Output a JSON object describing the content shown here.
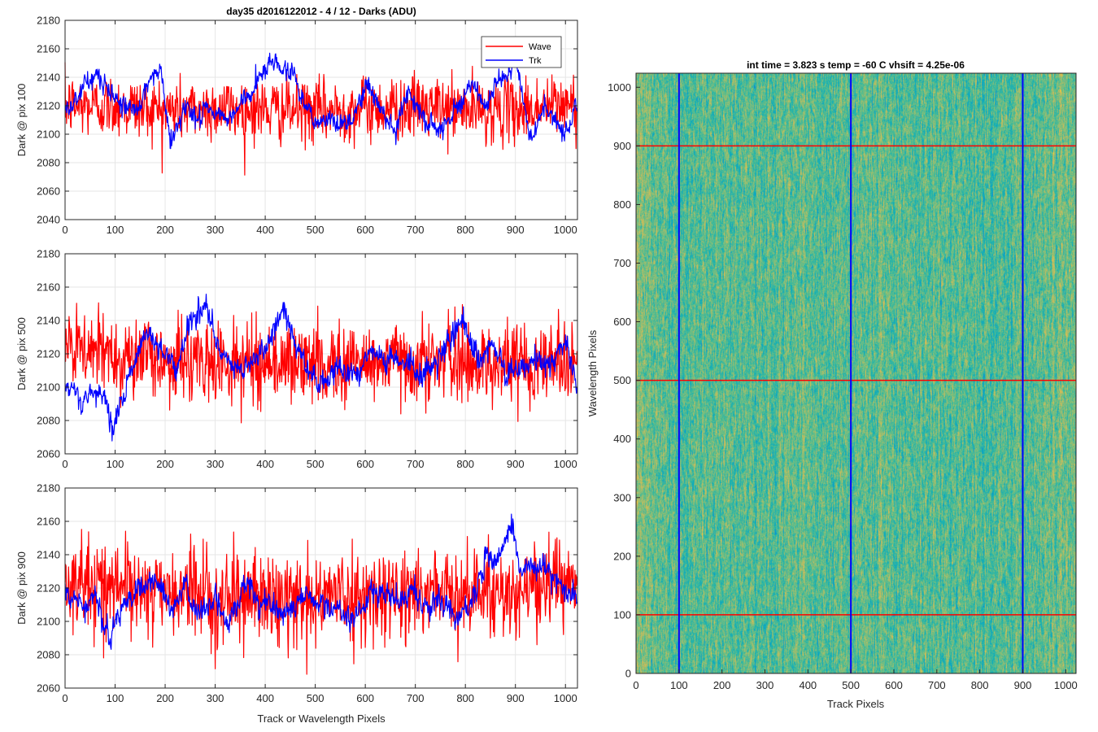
{
  "figure_title": "day35 d2016122012 - 4 / 12 - Darks (ADU)",
  "heatmap_title": "int time = 3.823 s   temp = -60 C   vhsift = 4.25e-06",
  "colors": {
    "wave": "#ff0000",
    "trk": "#0000ff",
    "grid": "#e6e6e6",
    "axis": "#262626"
  },
  "chart_data": [
    {
      "type": "line",
      "title": "day35 d2016122012 - 4 / 12 - Darks (ADU)",
      "xlabel": "",
      "ylabel": "Dark @ pix 100",
      "xlim": [
        0,
        1024
      ],
      "ylim": [
        2040,
        2180
      ],
      "xticks": [
        0,
        100,
        200,
        300,
        400,
        500,
        600,
        700,
        800,
        900,
        1000
      ],
      "yticks": [
        2040,
        2060,
        2080,
        2100,
        2120,
        2140,
        2160,
        2180
      ],
      "grid": true,
      "legend": {
        "placement": "top-right",
        "entries": [
          "Wave",
          "Trk"
        ]
      },
      "series": [
        {
          "name": "Wave",
          "color": "#ff0000",
          "mean": 2118,
          "noise": 11,
          "x": [
            0,
            100,
            200,
            300,
            400,
            500,
            600,
            700,
            800,
            900,
            1000,
            1024
          ],
          "y": [
            2120,
            2120,
            2117,
            2118,
            2117,
            2116,
            2118,
            2119,
            2117,
            2117,
            2121,
            2120
          ]
        },
        {
          "name": "Trk",
          "color": "#0000ff",
          "x": [
            0,
            30,
            60,
            100,
            130,
            160,
            190,
            210,
            240,
            270,
            300,
            330,
            360,
            390,
            410,
            430,
            460,
            490,
            520,
            550,
            580,
            600,
            630,
            660,
            690,
            720,
            750,
            780,
            810,
            840,
            870,
            900,
            930,
            960,
            990,
            1024
          ],
          "y": [
            2118,
            2130,
            2140,
            2128,
            2118,
            2125,
            2148,
            2093,
            2120,
            2112,
            2115,
            2110,
            2125,
            2140,
            2155,
            2148,
            2140,
            2113,
            2108,
            2110,
            2112,
            2140,
            2118,
            2107,
            2130,
            2108,
            2105,
            2120,
            2135,
            2118,
            2140,
            2148,
            2100,
            2118,
            2102,
            2120
          ]
        }
      ]
    },
    {
      "type": "line",
      "title": "",
      "xlabel": "",
      "ylabel": "Dark @ pix 500",
      "xlim": [
        0,
        1024
      ],
      "ylim": [
        2060,
        2180
      ],
      "xticks": [
        0,
        100,
        200,
        300,
        400,
        500,
        600,
        700,
        800,
        900,
        1000
      ],
      "yticks": [
        2060,
        2080,
        2100,
        2120,
        2140,
        2160,
        2180
      ],
      "grid": true,
      "series": [
        {
          "name": "Wave",
          "color": "#ff0000",
          "mean": 2115,
          "noise": 12,
          "x": [
            0,
            100,
            200,
            300,
            400,
            500,
            600,
            700,
            800,
            900,
            1000,
            1024
          ],
          "y": [
            2122,
            2120,
            2116,
            2114,
            2115,
            2114,
            2115,
            2116,
            2115,
            2114,
            2118,
            2116
          ]
        },
        {
          "name": "Trk",
          "color": "#0000ff",
          "x": [
            0,
            40,
            70,
            100,
            130,
            160,
            190,
            220,
            250,
            280,
            310,
            340,
            370,
            400,
            430,
            460,
            490,
            520,
            550,
            580,
            610,
            640,
            670,
            700,
            730,
            760,
            790,
            820,
            850,
            880,
            910,
            940,
            970,
            1000,
            1024
          ],
          "y": [
            2100,
            2090,
            2096,
            2080,
            2110,
            2135,
            2122,
            2112,
            2140,
            2148,
            2118,
            2110,
            2114,
            2125,
            2145,
            2125,
            2110,
            2100,
            2112,
            2110,
            2120,
            2112,
            2120,
            2110,
            2108,
            2125,
            2138,
            2118,
            2125,
            2110,
            2108,
            2118,
            2112,
            2128,
            2100
          ]
        }
      ]
    },
    {
      "type": "line",
      "title": "",
      "xlabel": "Track or Wavelength Pixels",
      "ylabel": "Dark @ pix 900",
      "xlim": [
        0,
        1024
      ],
      "ylim": [
        2060,
        2180
      ],
      "xticks": [
        0,
        100,
        200,
        300,
        400,
        500,
        600,
        700,
        800,
        900,
        1000
      ],
      "yticks": [
        2060,
        2080,
        2100,
        2120,
        2140,
        2160,
        2180
      ],
      "grid": true,
      "series": [
        {
          "name": "Wave",
          "color": "#ff0000",
          "mean": 2116,
          "noise": 13,
          "x": [
            0,
            100,
            200,
            300,
            400,
            500,
            600,
            700,
            800,
            900,
            1000,
            1024
          ],
          "y": [
            2125,
            2122,
            2117,
            2115,
            2114,
            2114,
            2116,
            2117,
            2118,
            2118,
            2124,
            2120
          ]
        },
        {
          "name": "Trk",
          "color": "#0000ff",
          "x": [
            0,
            30,
            60,
            90,
            120,
            150,
            180,
            210,
            240,
            270,
            300,
            330,
            360,
            390,
            420,
            450,
            480,
            510,
            540,
            570,
            600,
            630,
            660,
            690,
            720,
            750,
            780,
            810,
            840,
            870,
            890,
            910,
            940,
            970,
            1000,
            1024
          ],
          "y": [
            2118,
            2112,
            2115,
            2090,
            2112,
            2120,
            2125,
            2112,
            2118,
            2105,
            2110,
            2100,
            2118,
            2112,
            2110,
            2105,
            2118,
            2110,
            2110,
            2100,
            2112,
            2120,
            2110,
            2118,
            2110,
            2112,
            2108,
            2112,
            2135,
            2140,
            2160,
            2130,
            2135,
            2125,
            2118,
            2112
          ]
        }
      ]
    },
    {
      "type": "heatmap",
      "title": "int time = 3.823 s   temp = -60 C   vhsift = 4.25e-06",
      "xlabel": "Track Pixels",
      "ylabel": "Wavelength Pixels",
      "xlim": [
        0,
        1024
      ],
      "ylim": [
        0,
        1024
      ],
      "xticks": [
        0,
        100,
        200,
        300,
        400,
        500,
        600,
        700,
        800,
        900,
        1000
      ],
      "yticks": [
        0,
        100,
        200,
        300,
        400,
        500,
        600,
        700,
        800,
        900,
        1000
      ],
      "colormap": "parula",
      "vertical_markers": {
        "color": "#0000ff",
        "x": [
          100,
          500,
          900
        ]
      },
      "horizontal_markers": {
        "color": "#ff0000",
        "y": [
          100,
          500,
          900
        ]
      }
    }
  ]
}
